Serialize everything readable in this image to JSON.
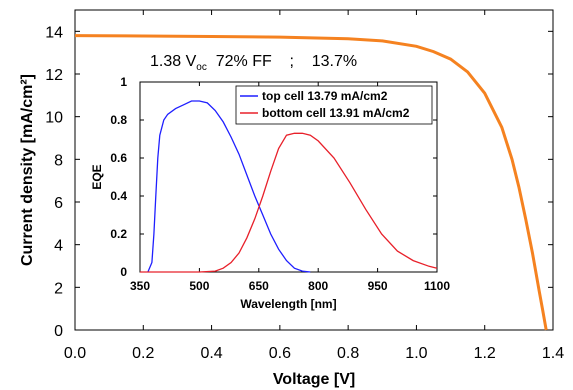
{
  "chart_data": [
    {
      "type": "line",
      "xlabel": "Voltage [V]",
      "ylabel": "Current density [mA/cm²]",
      "xlim": [
        0,
        1.4
      ],
      "ylim": [
        0,
        15
      ],
      "x_ticks": [
        "0.0",
        "0.2",
        "0.4",
        "0.6",
        "0.8",
        "1.0",
        "1.2",
        "1.4"
      ],
      "y_ticks": [
        "0",
        "2",
        "4",
        "6",
        "8",
        "10",
        "12",
        "14"
      ],
      "grid": false,
      "annotation": {
        "voc": "1.38 V",
        "voc_sub": "oc",
        "rest": "  72% FF    ;    13.7%"
      },
      "series": [
        {
          "color": "#f58220",
          "x": [
            0,
            0.2,
            0.4,
            0.6,
            0.8,
            0.9,
            1.0,
            1.05,
            1.1,
            1.15,
            1.2,
            1.25,
            1.28,
            1.3,
            1.32,
            1.34,
            1.36,
            1.37,
            1.38
          ],
          "y": [
            13.8,
            13.78,
            13.76,
            13.73,
            13.65,
            13.55,
            13.3,
            13.05,
            12.7,
            12.1,
            11.1,
            9.5,
            8.0,
            6.7,
            5.2,
            3.6,
            1.8,
            0.9,
            0
          ]
        }
      ]
    },
    {
      "type": "line",
      "xlabel": "Wavelength [nm]",
      "ylabel": "EQE",
      "xlim": [
        350,
        1100
      ],
      "ylim": [
        0,
        1
      ],
      "x_ticks": [
        "350",
        "500",
        "650",
        "800",
        "950",
        "1100"
      ],
      "y_ticks": [
        "0",
        "0.2",
        "0.4",
        "0.6",
        "0.8",
        "1"
      ],
      "grid": false,
      "legend_position": "top-right",
      "series": [
        {
          "name": "top cell 13.79 mA/cm2",
          "color": "#1f1fff",
          "x": [
            370,
            380,
            385,
            390,
            395,
            400,
            410,
            420,
            440,
            460,
            480,
            500,
            520,
            540,
            560,
            580,
            600,
            620,
            640,
            660,
            680,
            700,
            720,
            740,
            760,
            780
          ],
          "y": [
            0.0,
            0.05,
            0.2,
            0.4,
            0.6,
            0.72,
            0.8,
            0.83,
            0.86,
            0.88,
            0.9,
            0.9,
            0.89,
            0.85,
            0.79,
            0.71,
            0.62,
            0.51,
            0.4,
            0.3,
            0.2,
            0.12,
            0.06,
            0.02,
            0.005,
            0.0
          ]
        },
        {
          "name": "bottom cell 13.91 mA/cm2",
          "color": "#e8202a",
          "x": [
            350,
            500,
            540,
            560,
            580,
            600,
            620,
            640,
            660,
            680,
            700,
            720,
            740,
            760,
            780,
            800,
            840,
            880,
            920,
            960,
            1000,
            1040,
            1080,
            1100
          ],
          "y": [
            0.0,
            0.0,
            0.005,
            0.02,
            0.05,
            0.1,
            0.18,
            0.28,
            0.4,
            0.53,
            0.65,
            0.72,
            0.73,
            0.73,
            0.72,
            0.69,
            0.6,
            0.47,
            0.33,
            0.2,
            0.11,
            0.06,
            0.03,
            0.02
          ]
        }
      ]
    }
  ]
}
